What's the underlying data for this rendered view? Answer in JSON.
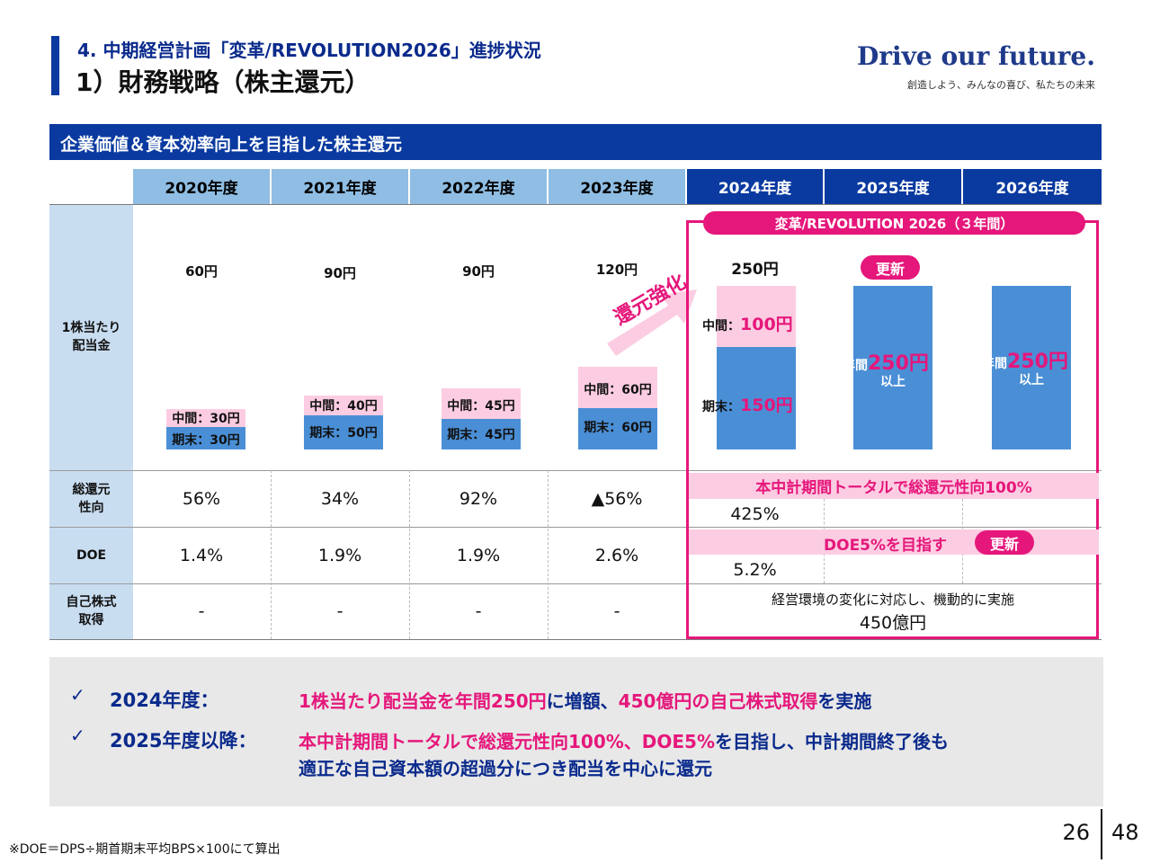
{
  "header": {
    "section": "4.  中期経営計画「変革/REVOLUTION2026」進捗状況",
    "title": "1）財務戦略（株主還元）",
    "brand": "Drive our future.",
    "tagline": "創造しよう、みんなの喜び、私たちの未来"
  },
  "banner": "企業価値＆資本効率向上を目指した株主還元",
  "years": [
    "2020年度",
    "2021年度",
    "2022年度",
    "2023年度",
    "2024年度",
    "2025年度",
    "2026年度"
  ],
  "row_labels": {
    "dividend": "1株当たり\n配当金",
    "payout": "総還元\n性向",
    "doe": "DOE",
    "buyback": "自己株式\n取得"
  },
  "dividends": {
    "y2020": {
      "total": "60円",
      "interim": "中間：30円",
      "final": "期末：30円"
    },
    "y2021": {
      "total": "90円",
      "interim": "中間：40円",
      "final": "期末：50円"
    },
    "y2022": {
      "total": "90円",
      "interim": "中間：45円",
      "final": "期末：45円"
    },
    "y2023": {
      "total": "120円",
      "interim": "中間：60円",
      "final": "期末：60円"
    },
    "y2024": {
      "total": "250円",
      "interim_label": "中間：",
      "interim_value": "100円",
      "final_label": "期末：",
      "final_value": "150円"
    },
    "y2025": {
      "prefix": "年間",
      "value": "250円",
      "suffix": "以上"
    },
    "y2026": {
      "prefix": "年間",
      "value": "250円",
      "suffix": "以上"
    }
  },
  "dividend_values_yen": {
    "interim": [
      30,
      40,
      45,
      60,
      100
    ],
    "final": [
      30,
      50,
      45,
      60,
      150
    ],
    "annual_target_2025_2026": 250
  },
  "arrow_label": "還元強化",
  "plan_label": "変革/REVOLUTION 2026（３年間）",
  "update_badge": "更新",
  "payout": [
    "56%",
    "34%",
    "92%",
    "▲56%",
    "425%"
  ],
  "payout_target": "本中計期間トータルで総還元性向100%",
  "doe": [
    "1.4%",
    "1.9%",
    "1.9%",
    "2.6%",
    "5.2%"
  ],
  "doe_target": "DOE5%を目指す",
  "buyback": [
    "-",
    "-",
    "-",
    "-"
  ],
  "buyback_plan": {
    "note": "経営環境の変化に対応し、機動的に実施",
    "amount": "450億円"
  },
  "summary": {
    "check": "✓",
    "r1_label": "2024年度：",
    "r1_p1": "1株当たり配当金を年間250円",
    "r1_p2": "に増額、",
    "r1_p3": "450億円の自己株式取得",
    "r1_p4": "を実施",
    "r2_label": "2025年度以降：",
    "r2_p1": "本中計期間トータルで総還元性向100%、DOE5%",
    "r2_p2": "を目指し、中計期間終了後も",
    "r2_line2": "適正な自己資本額の超過分につき配当を中心に還元"
  },
  "footnote": "※DOE＝DPS÷期首期末平均BPS×100にて算出",
  "page": {
    "current": "26",
    "total": "48"
  },
  "colors": {
    "navy": "#0a3aa0",
    "pink": "#e5177b",
    "light_blue": "#8fbde3",
    "bar_blue": "#4a8fd6",
    "light_pink": "#fccde2"
  }
}
